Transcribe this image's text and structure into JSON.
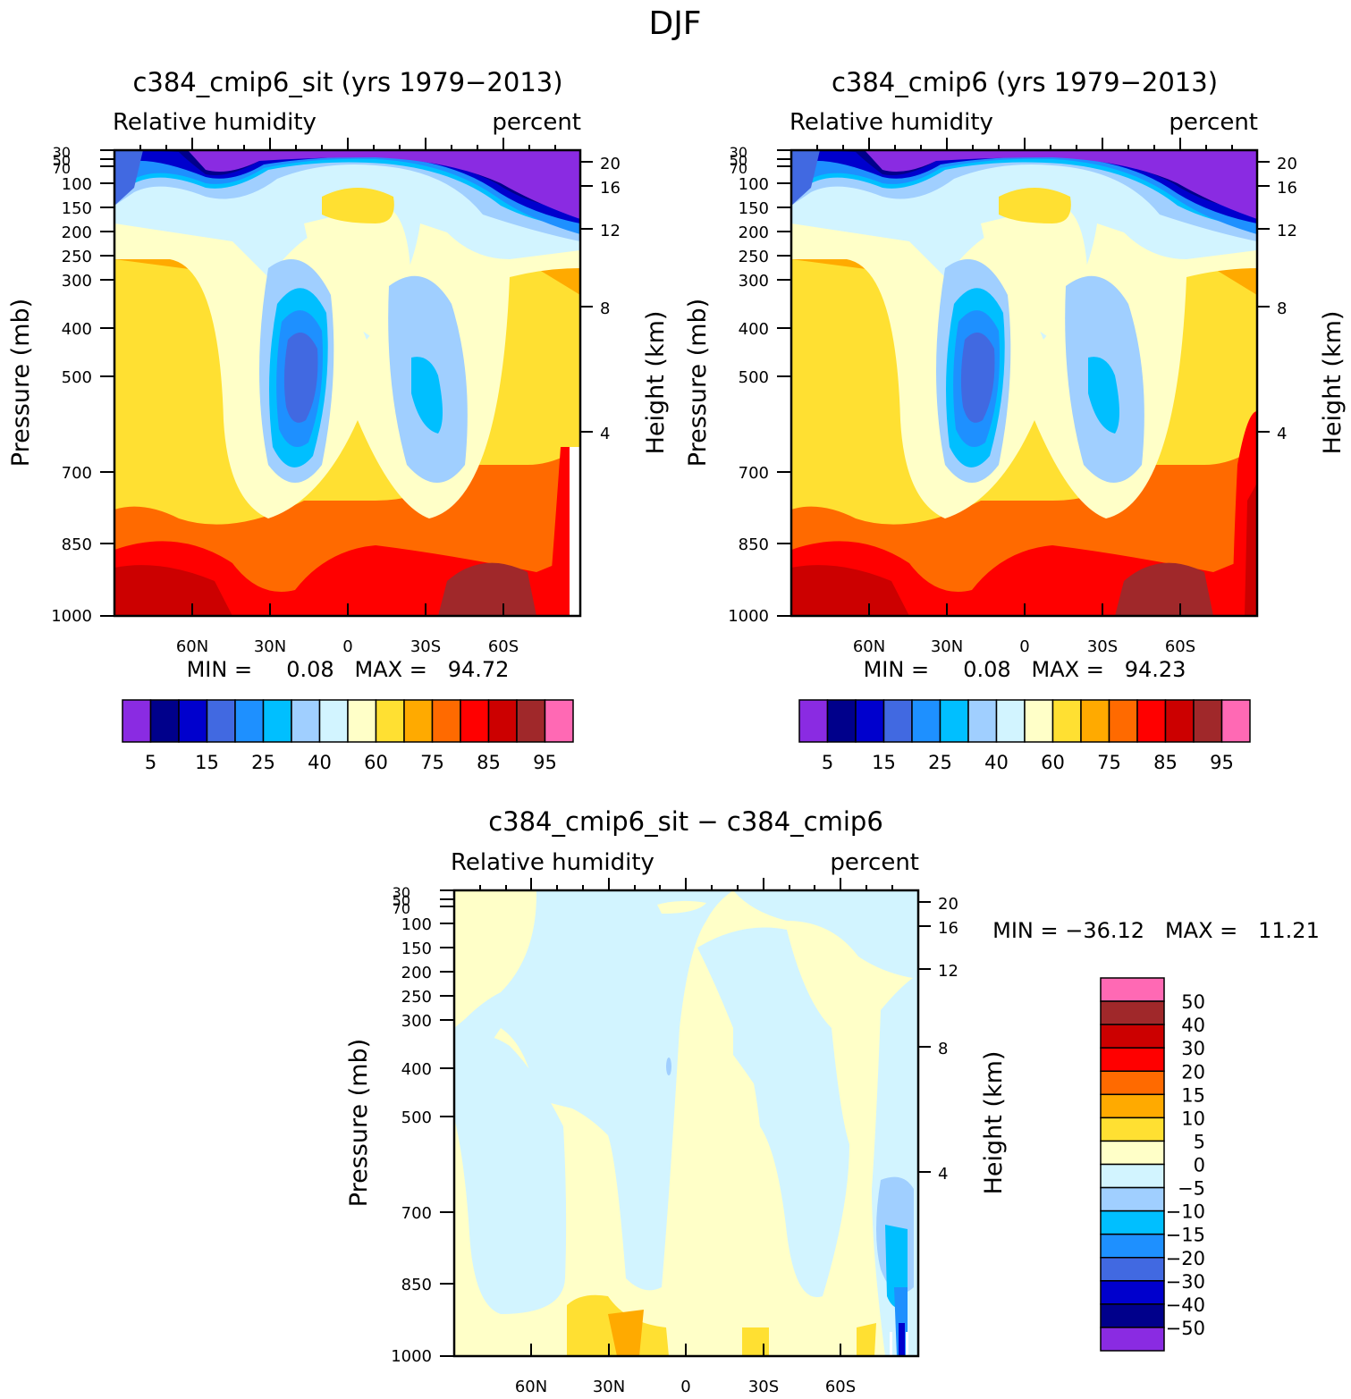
{
  "figure": {
    "main_title": "DJF"
  },
  "chart_data": [
    {
      "type": "contour",
      "title": "c384_cmip6_sit (yrs 1979−2013)",
      "subtitle_left": "Relative humidity",
      "subtitle_right": "percent",
      "xlabel": "",
      "ylabel": "Pressure (mb)",
      "ylabel_right": "Height (km)",
      "xticks": [
        "60N",
        "30N",
        "0",
        "30S",
        "60S"
      ],
      "yticks": [
        "30",
        "50",
        "70",
        "100",
        "150",
        "200",
        "250",
        "300",
        "400",
        "500",
        "700",
        "850",
        "1000"
      ],
      "yticks_right": [
        "20",
        "16",
        "12",
        "8",
        "4"
      ],
      "stats": "MIN =     0.08   MAX =   94.72",
      "colorbar": {
        "orientation": "horizontal",
        "labels": [
          "5",
          "15",
          "25",
          "40",
          "60",
          "75",
          "85",
          "95"
        ],
        "colors": [
          "#8a2be2",
          "#00008b",
          "#0000cd",
          "#4169e1",
          "#1e90ff",
          "#00bfff",
          "#a0cfff",
          "#d2f4ff",
          "#ffffc8",
          "#ffe032",
          "#ffaa00",
          "#ff6a00",
          "#ff0000",
          "#cc0000",
          "#a0282a",
          "#ff69b4"
        ]
      }
    },
    {
      "type": "contour",
      "title": "c384_cmip6 (yrs 1979−2013)",
      "subtitle_left": "Relative humidity",
      "subtitle_right": "percent",
      "xlabel": "",
      "ylabel": "Pressure (mb)",
      "ylabel_right": "Height (km)",
      "xticks": [
        "60N",
        "30N",
        "0",
        "30S",
        "60S"
      ],
      "yticks": [
        "30",
        "50",
        "70",
        "100",
        "150",
        "200",
        "250",
        "300",
        "400",
        "500",
        "700",
        "850",
        "1000"
      ],
      "yticks_right": [
        "20",
        "16",
        "12",
        "8",
        "4"
      ],
      "stats": "MIN =     0.08   MAX =   94.23",
      "colorbar": {
        "orientation": "horizontal",
        "labels": [
          "5",
          "15",
          "25",
          "40",
          "60",
          "75",
          "85",
          "95"
        ],
        "colors": [
          "#8a2be2",
          "#00008b",
          "#0000cd",
          "#4169e1",
          "#1e90ff",
          "#00bfff",
          "#a0cfff",
          "#d2f4ff",
          "#ffffc8",
          "#ffe032",
          "#ffaa00",
          "#ff6a00",
          "#ff0000",
          "#cc0000",
          "#a0282a",
          "#ff69b4"
        ]
      }
    },
    {
      "type": "contour",
      "title": "c384_cmip6_sit − c384_cmip6",
      "subtitle_left": "Relative humidity",
      "subtitle_right": "percent",
      "xlabel": "",
      "ylabel": "Pressure (mb)",
      "ylabel_right": "Height (km)",
      "xticks": [
        "60N",
        "30N",
        "0",
        "30S",
        "60S"
      ],
      "yticks": [
        "30",
        "50",
        "70",
        "100",
        "150",
        "200",
        "250",
        "300",
        "400",
        "500",
        "700",
        "850",
        "1000"
      ],
      "yticks_right": [
        "20",
        "16",
        "12",
        "8",
        "4"
      ],
      "stats": "MIN = −36.12   MAX =   11.21",
      "colorbar": {
        "orientation": "vertical",
        "labels": [
          "50",
          "40",
          "30",
          "20",
          "15",
          "10",
          "5",
          "0",
          "−5",
          "−10",
          "−15",
          "−20",
          "−30",
          "−40",
          "−50"
        ],
        "colors": [
          "#ff69b4",
          "#a0282a",
          "#cc0000",
          "#ff0000",
          "#ff6a00",
          "#ffaa00",
          "#ffe032",
          "#ffffc8",
          "#d2f4ff",
          "#a0cfff",
          "#00bfff",
          "#1e90ff",
          "#4169e1",
          "#0000cd",
          "#00008b",
          "#8a2be2"
        ]
      }
    }
  ]
}
